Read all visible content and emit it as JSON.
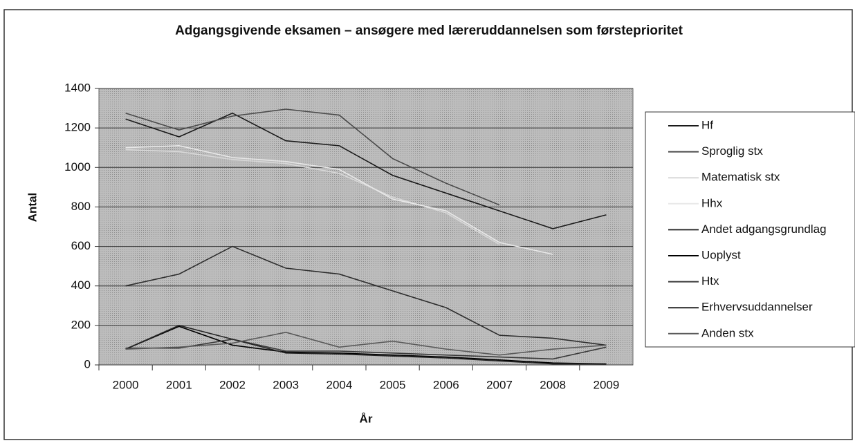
{
  "chart_data": {
    "type": "line",
    "title": "Adgangsgivende eksamen – ansøgere med læreruddannelsen som førsteprioritet",
    "x_label": "År",
    "y_label": "Antal",
    "categories": [
      "2000",
      "2001",
      "2002",
      "2003",
      "2004",
      "2005",
      "2006",
      "2007",
      "2008",
      "2009"
    ],
    "series": [
      {
        "name": "Hf",
        "color": "#1a1a1a",
        "values": [
          1245,
          1155,
          1275,
          1135,
          1110,
          960,
          870,
          780,
          690,
          760
        ]
      },
      {
        "name": "Sproglig stx",
        "color": "#4a4a4a",
        "values": [
          1275,
          1190,
          1260,
          1295,
          1265,
          1045,
          920,
          810,
          null,
          null
        ]
      },
      {
        "name": "Matematisk stx",
        "color": "#d8d8d8",
        "values": [
          1090,
          1080,
          1040,
          1020,
          970,
          850,
          770,
          610,
          null,
          null
        ]
      },
      {
        "name": "Hhx",
        "color": "#e8e8e8",
        "values": [
          1100,
          1110,
          1050,
          1030,
          990,
          840,
          780,
          620,
          560,
          null
        ]
      },
      {
        "name": "Andet adgangsgrundlag",
        "color": "#2e2e2e",
        "values": [
          400,
          460,
          600,
          490,
          460,
          375,
          290,
          150,
          135,
          100
        ]
      },
      {
        "name": "Uoplyst",
        "color": "#000000",
        "values": [
          80,
          195,
          100,
          65,
          60,
          50,
          40,
          25,
          10,
          5
        ]
      },
      {
        "name": "Htx",
        "color": "#3a3a3a",
        "values": [
          85,
          85,
          130,
          70,
          70,
          60,
          50,
          40,
          30,
          90
        ]
      },
      {
        "name": "Erhvervsuddannelser",
        "color": "#262626",
        "values": [
          80,
          200,
          130,
          60,
          55,
          45,
          35,
          20,
          5,
          5
        ]
      },
      {
        "name": "Anden stx",
        "color": "#5a5a5a",
        "values": [
          80,
          90,
          110,
          165,
          90,
          120,
          80,
          50,
          80,
          100
        ]
      }
    ],
    "ylim": [
      0,
      1400
    ],
    "yticks": [
      0,
      200,
      400,
      600,
      800,
      1000,
      1200,
      1400
    ],
    "grid": true,
    "legend": "right"
  }
}
